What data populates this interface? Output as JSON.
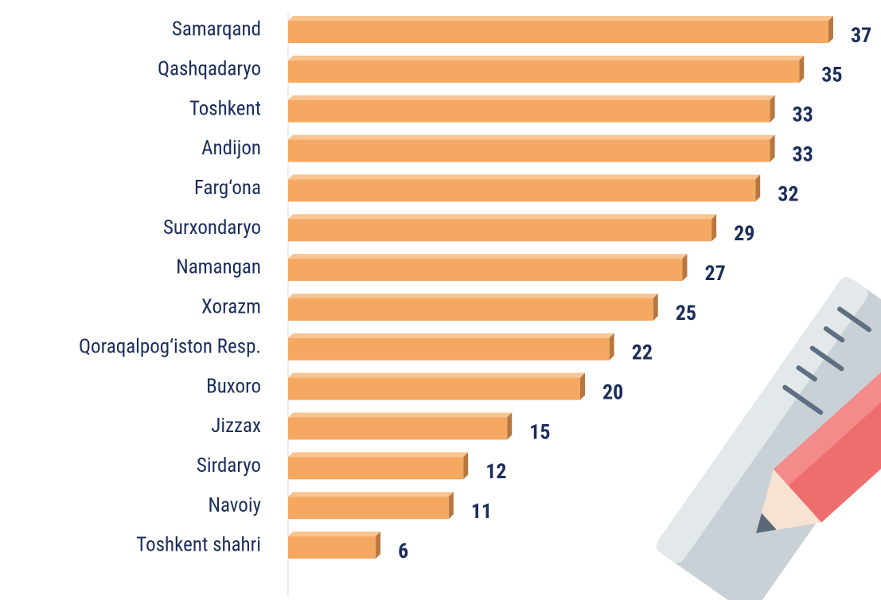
{
  "chart_data": {
    "type": "bar",
    "orientation": "horizontal",
    "categories": [
      "Samarqand",
      "Qashqadaryo",
      "Toshkent",
      "Andijon",
      "Farg‘ona",
      "Surxondaryo",
      "Namangan",
      "Xorazm",
      "Qoraqalpog‘iston Resp.",
      "Buxoro",
      "Jizzax",
      "Sirdaryo",
      "Navoiy",
      "Toshkent shahri"
    ],
    "values": [
      37,
      35,
      33,
      33,
      32,
      29,
      27,
      25,
      22,
      20,
      15,
      12,
      11,
      6
    ],
    "color": "#f4a862"
  }
}
